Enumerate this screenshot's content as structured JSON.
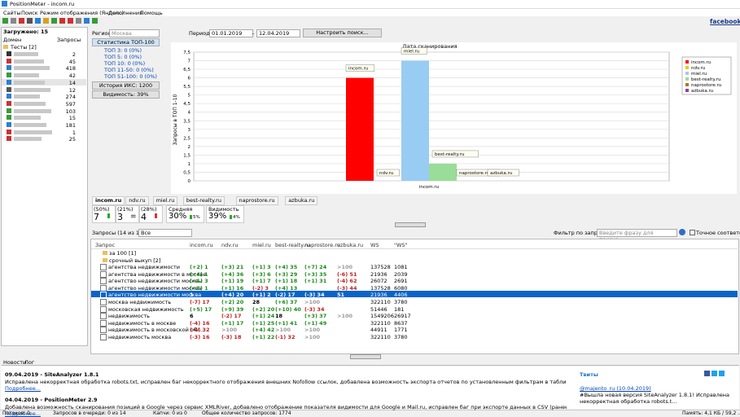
{
  "window": {
    "title": "PositionMeter - incom.ru",
    "menu": [
      "Сайты",
      "Поиск",
      "Режим отображения (Яндекс)",
      "Дополнения",
      "Помощь"
    ],
    "facebook": "facebook"
  },
  "left": {
    "loaded": "Загружено: 15",
    "col_domain": "Домен",
    "col_queries": "Запросы",
    "group": "Тесты [2]",
    "counts": [
      "2",
      "45",
      "418",
      "42",
      "14",
      "12",
      "274",
      "597",
      "103",
      "15",
      "181",
      "1",
      "25"
    ]
  },
  "filters": {
    "region_label": "Регион:",
    "region": "Москва",
    "period_label": "Период:",
    "date_from": "01.01.2019",
    "dash": "-",
    "date_to": "12.04.2019",
    "setup": "Настроить поиск..."
  },
  "stats": {
    "header": "Статистика ТОП-100",
    "lines": [
      "ТОП 3: 0 (0%)",
      "ТОП 5: 0 (0%)",
      "ТОП 10: 0 (0%)",
      "ТОП 11-50: 0 (0%)",
      "ТОП 51-100: 0 (0%)"
    ],
    "iks": "История ИКС: 1200",
    "visibility": "Видимость: 39%"
  },
  "chart": {
    "type": "bar",
    "title": "Дата сканирования",
    "y_label": "Запросы в ТОП 1-10",
    "categories": [
      "incom.ru"
    ],
    "series": [
      {
        "name": "incom.ru",
        "color": "#ff0000",
        "values": [
          6
        ]
      },
      {
        "name": "ndv.ru",
        "color": "#f5c400",
        "values": [
          0
        ]
      },
      {
        "name": "miel.ru",
        "color": "#99ccf2",
        "values": [
          7
        ]
      },
      {
        "name": "best-realty.ru",
        "color": "#99dd99",
        "values": [
          1
        ]
      },
      {
        "name": "naprostore.ru",
        "color": "#c07020",
        "values": [
          0
        ]
      },
      {
        "name": "azbuka.ru",
        "color": "#8844aa",
        "values": [
          0
        ]
      }
    ],
    "ylim": [
      0,
      7.5
    ],
    "yticks": [
      0,
      {
        "value": 0.5,
        "label": "0,5"
      },
      1,
      {
        "value": 1.5,
        "label": "1,5"
      },
      2,
      {
        "value": 2.5,
        "label": "2,5"
      },
      3,
      {
        "value": 3.5,
        "label": "3,5"
      },
      4,
      {
        "value": 4.5,
        "label": "4,5"
      },
      5,
      {
        "value": 5.5,
        "label": "5,5"
      },
      6,
      {
        "value": 6.5,
        "label": "6,5"
      },
      7,
      {
        "value": 7.5,
        "label": "7,5"
      }
    ],
    "grid": true
  },
  "tabs": [
    "incom.ru",
    "ndv.ru",
    "miel.ru",
    "best-realty.ru",
    "naprostore.ru",
    "azbuka.ru"
  ],
  "summary": {
    "boxes": [
      {
        "pct": "(50%)",
        "value": "7"
      },
      {
        "pct": "(21%)",
        "value": "3",
        "sign": "="
      },
      {
        "pct": "(28%)",
        "value": "4"
      }
    ],
    "average": {
      "label": "Средняя",
      "value": "30%",
      "delta": "5%"
    },
    "visibility": {
      "label": "Видимость",
      "value": "39%",
      "delta": "4%"
    }
  },
  "query_bar": {
    "count": "Запросы (14 из 14)",
    "scope": "Все",
    "filter_label": "Фильтр по запросу:",
    "filter_placeholder": "Введите фразу для поиска...",
    "exact": "Точное соответствие"
  },
  "table": {
    "columns": [
      "Запрос",
      "incom.ru",
      "ndv.ru",
      "miel.ru",
      "best-realty.ru",
      "naprostore.ru",
      "azbuka.ru",
      "WS",
      "\"WS\""
    ],
    "folders": [
      "за 100 [1]",
      "срочный выкуп [2]"
    ],
    "rows": [
      [
        "агентства недвижимости",
        "(+2) 1",
        "(+3) 21",
        "(+1) 3",
        "(+4) 35",
        "(+7) 24",
        ">100",
        "137528",
        "1081"
      ],
      [
        "агентства недвижимости в москве",
        "(+4) 1",
        "(+4) 36",
        "(+3) 6",
        "(+3) 29",
        "(+3) 35",
        "(-6) 51",
        "21936",
        "2039"
      ],
      [
        "агентство недвижимости москвы",
        "(+1) 3",
        "(+1) 19",
        "(+1) 7",
        "(+1) 18",
        "(+1) 31",
        "(-4) 62",
        "26072",
        "2691"
      ],
      [
        "агентство недвижимости москва",
        "(+1) 1",
        "(+1) 16",
        "(-2) 3",
        "(+4) 13",
        null,
        "(-3) 44",
        "137528",
        "6080"
      ],
      [
        "агентство недвижимости москва",
        "1",
        "(+4) 20",
        "(+1) 2",
        "(-2) 17",
        "(-3) 34",
        "51",
        "21936",
        "4406"
      ],
      [
        "москва недвижимость",
        "(-7) 17",
        "(+2) 20",
        "28",
        "(+6) 37",
        ">100",
        null,
        "322110",
        "3780"
      ],
      [
        "московская недвижимость",
        "(+5) 17",
        "(+9) 39",
        "(+2) 20",
        "(+10) 40",
        "(-3) 34",
        null,
        "51446",
        "181"
      ],
      [
        "недвижимость",
        "6",
        "(-2) 17",
        "(+1) 24",
        "18",
        "(+3) 37",
        ">100",
        "1549206",
        "26917"
      ],
      [
        "недвижимость в москве",
        "(-4) 16",
        "(+1) 17",
        "(+1) 25",
        "(+1) 41",
        "(+1) 49",
        null,
        "322110",
        "8637"
      ],
      [
        "недвижимость в московской обл...",
        "(-4) 32",
        ">100",
        "(+4) 42",
        ">100",
        ">100",
        null,
        "44911",
        "1771"
      ],
      [
        "недвижимость москва",
        "(-3) 16",
        "(-3) 18",
        "(+1) 22",
        "(-1) 32",
        ">100",
        null,
        "322110",
        "3780"
      ]
    ]
  },
  "bottom": {
    "tabs": [
      "Новости",
      "Лог"
    ],
    "news": [
      {
        "title": "09.04.2019 - SiteAnalyzer 1.8.1",
        "text": "Исправлена некорректная обработка robots.txt, исправлен баг некорректного отображения внешних Nofollow ссылок, добавлена возможность экспорта отчетов по установленным фильтрам в таблице основных данных сайта, а так же на вкладке Инфо...",
        "more": "Подробнее..."
      },
      {
        "title": "04.04.2019 - PositionMeter 2.9",
        "text": "Добавлена возможность сканирования позиций в Google через сервис XMLRiver, добавлено отображение показателя видимости для Google и Mail.ru, исправлен баг при экспорте данных в CSV (ранее отчет не сохранялся)...",
        "more": "Подробнее..."
      }
    ],
    "tweets": {
      "header": "Твиты",
      "author": "@majento_ru (10.04.2019)",
      "text": "#Вышла новая версия SiteAnalyzer 1.8.1! Исправлена некорректная обработка robots.t..."
    }
  },
  "status": [
    "Потоков: 0",
    "Запросов в очереди: 0 из 14",
    "Капчи: 0 из 0",
    "Общее количество запросов: 1774",
    "Память: 4,1 КБ / 59,2 ..."
  ]
}
